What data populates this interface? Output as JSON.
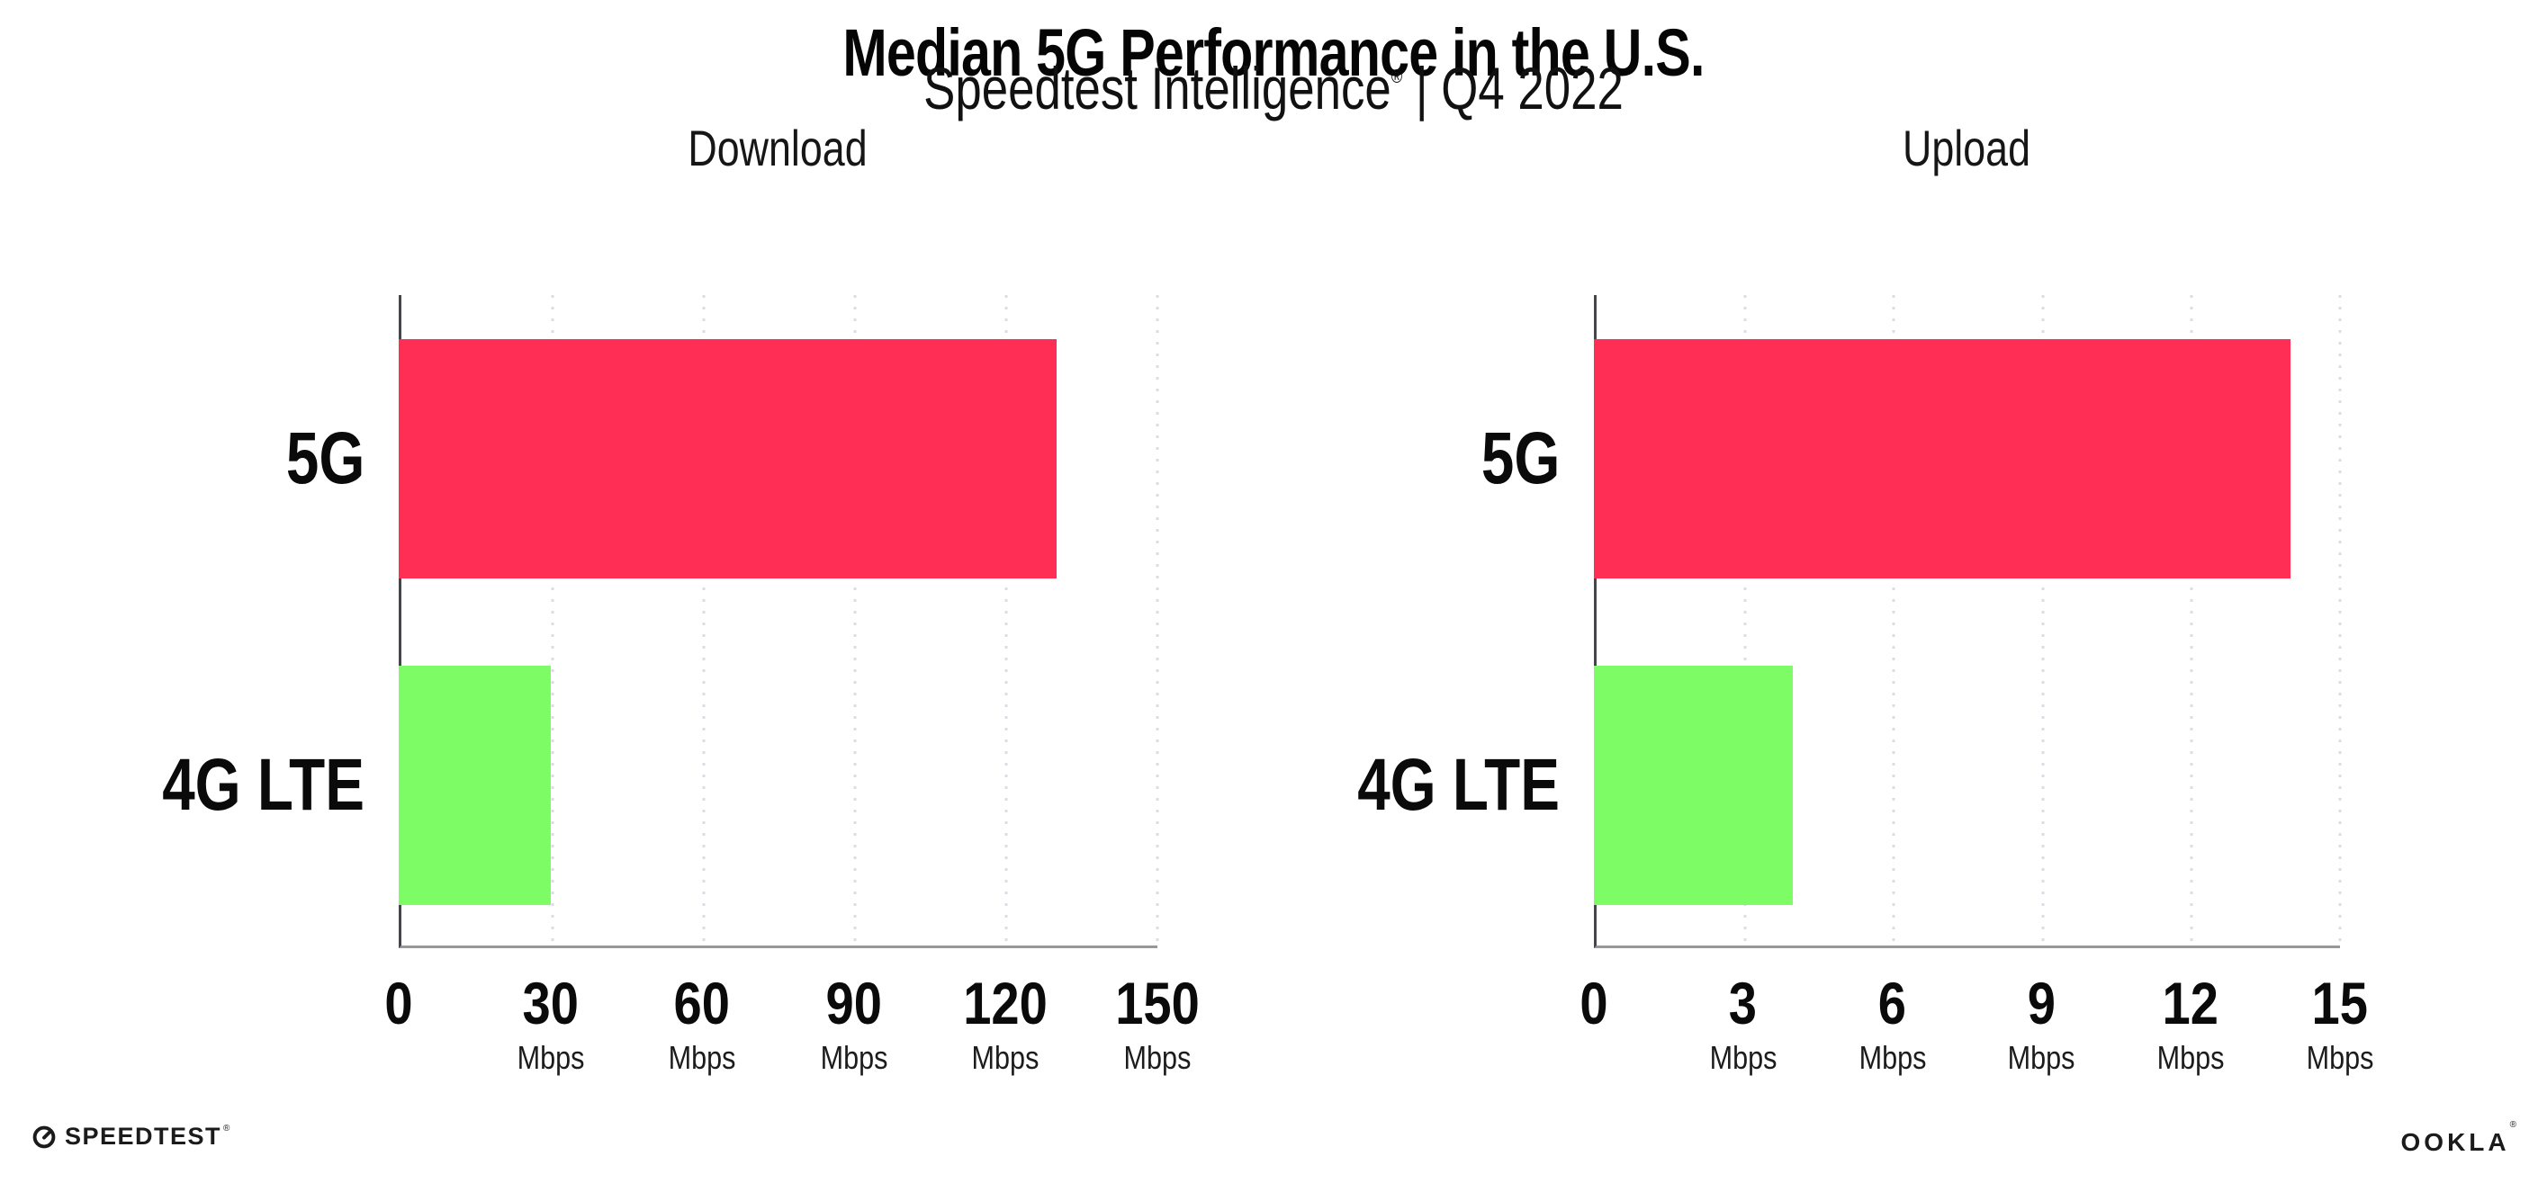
{
  "header": {
    "title": "Median 5G Performance in the U.S.",
    "subtitle_brand": "Speedtest Intelligence",
    "subtitle_reg": "®",
    "subtitle_rest": " | Q4 2022"
  },
  "colors": {
    "bar_5g": "#ff2e55",
    "bar_4g_lte": "#7dfc66",
    "axis_left": "#43464c",
    "axis_bottom": "#97979c",
    "gridline": "#dcdce6",
    "text": "#0c0c0c"
  },
  "chart_data": [
    {
      "type": "bar",
      "orientation": "horizontal",
      "title": "Download",
      "categories": [
        "5G",
        "4G LTE"
      ],
      "values": [
        130,
        30
      ],
      "unit": "Mbps",
      "xlim": [
        0,
        150
      ],
      "xticks": [
        0,
        30,
        60,
        90,
        120,
        150
      ],
      "bar_colors": [
        "#ff2e55",
        "#7dfc66"
      ],
      "grid": "vertical-dotted",
      "legend": "none"
    },
    {
      "type": "bar",
      "orientation": "horizontal",
      "title": "Upload",
      "categories": [
        "5G",
        "4G LTE"
      ],
      "values": [
        14,
        4
      ],
      "unit": "Mbps",
      "xlim": [
        0,
        15
      ],
      "xticks": [
        0,
        3,
        6,
        9,
        12,
        15
      ],
      "bar_colors": [
        "#ff2e55",
        "#7dfc66"
      ],
      "grid": "vertical-dotted",
      "legend": "none"
    }
  ],
  "footer": {
    "speedtest_label": "SPEEDTEST",
    "speedtest_reg": "®",
    "ookla_label": "OOKLA",
    "ookla_reg": "®"
  }
}
